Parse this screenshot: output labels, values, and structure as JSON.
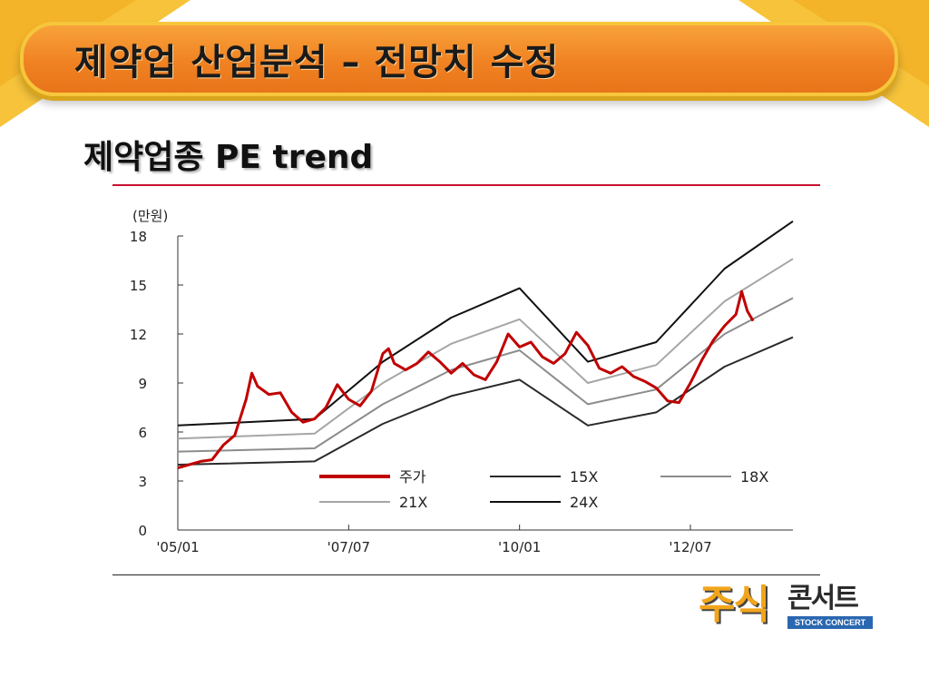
{
  "slide": {
    "title": "제약업 산업분석 – 전망치 수정",
    "subtitle": "제약업종 PE trend"
  },
  "logo": {
    "main": "주식",
    "side": "콘서트",
    "tag": "STOCK CONCERT"
  },
  "chart_data": {
    "type": "line",
    "title": "",
    "ylabel": "(만원)",
    "xlabel": "",
    "ylim": [
      0,
      18
    ],
    "yticks": [
      "0",
      "3",
      "6",
      "9",
      "12",
      "15",
      "18"
    ],
    "xticks": [
      {
        "label": "'05/01",
        "date": "2005-01"
      },
      {
        "label": "'07/07",
        "date": "2007-07"
      },
      {
        "label": "'10/01",
        "date": "2010-01"
      },
      {
        "label": "'12/07",
        "date": "2012-07"
      }
    ],
    "xlim": [
      "2005-01",
      "2014-01"
    ],
    "grid": false,
    "legend_position": "bottom-inside",
    "series": [
      {
        "name": "주가",
        "color": "#c00000",
        "points": [
          [
            "2005-01",
            3.8
          ],
          [
            "2005-03",
            4.0
          ],
          [
            "2005-05",
            4.2
          ],
          [
            "2005-07",
            4.3
          ],
          [
            "2005-09",
            5.2
          ],
          [
            "2005-11",
            5.8
          ],
          [
            "2006-01",
            8.0
          ],
          [
            "2006-02",
            9.6
          ],
          [
            "2006-03",
            8.8
          ],
          [
            "2006-05",
            8.3
          ],
          [
            "2006-07",
            8.4
          ],
          [
            "2006-09",
            7.2
          ],
          [
            "2006-11",
            6.6
          ],
          [
            "2007-01",
            6.8
          ],
          [
            "2007-03",
            7.5
          ],
          [
            "2007-05",
            8.9
          ],
          [
            "2007-07",
            8.0
          ],
          [
            "2007-09",
            7.6
          ],
          [
            "2007-11",
            8.5
          ],
          [
            "2008-01",
            10.8
          ],
          [
            "2008-02",
            11.1
          ],
          [
            "2008-03",
            10.2
          ],
          [
            "2008-05",
            9.8
          ],
          [
            "2008-07",
            10.2
          ],
          [
            "2008-09",
            10.9
          ],
          [
            "2008-11",
            10.3
          ],
          [
            "2009-01",
            9.6
          ],
          [
            "2009-03",
            10.2
          ],
          [
            "2009-05",
            9.5
          ],
          [
            "2009-07",
            9.2
          ],
          [
            "2009-09",
            10.3
          ],
          [
            "2009-11",
            12.0
          ],
          [
            "2010-01",
            11.2
          ],
          [
            "2010-03",
            11.5
          ],
          [
            "2010-05",
            10.6
          ],
          [
            "2010-07",
            10.2
          ],
          [
            "2010-09",
            10.8
          ],
          [
            "2010-11",
            12.1
          ],
          [
            "2011-01",
            11.3
          ],
          [
            "2011-03",
            9.9
          ],
          [
            "2011-05",
            9.6
          ],
          [
            "2011-07",
            10.0
          ],
          [
            "2011-09",
            9.4
          ],
          [
            "2011-11",
            9.1
          ],
          [
            "2012-01",
            8.7
          ],
          [
            "2012-03",
            7.9
          ],
          [
            "2012-05",
            7.8
          ],
          [
            "2012-07",
            9.0
          ],
          [
            "2012-09",
            10.4
          ],
          [
            "2012-11",
            11.6
          ],
          [
            "2013-01",
            12.5
          ],
          [
            "2013-03",
            13.2
          ],
          [
            "2013-04",
            14.6
          ],
          [
            "2013-05",
            13.4
          ],
          [
            "2013-06",
            12.8
          ]
        ]
      },
      {
        "name": "15X",
        "color": "#2a2a2a",
        "points": [
          [
            "2005-01",
            4.0
          ],
          [
            "2007-01",
            4.2
          ],
          [
            "2008-01",
            6.5
          ],
          [
            "2009-01",
            8.2
          ],
          [
            "2010-01",
            9.2
          ],
          [
            "2011-01",
            6.4
          ],
          [
            "2012-01",
            7.2
          ],
          [
            "2013-01",
            10.0
          ],
          [
            "2014-01",
            11.8
          ]
        ]
      },
      {
        "name": "18X",
        "color": "#8c8c8c",
        "points": [
          [
            "2005-01",
            4.8
          ],
          [
            "2007-01",
            5.0
          ],
          [
            "2008-01",
            7.7
          ],
          [
            "2009-01",
            9.8
          ],
          [
            "2010-01",
            11.0
          ],
          [
            "2011-01",
            7.7
          ],
          [
            "2012-01",
            8.6
          ],
          [
            "2013-01",
            12.0
          ],
          [
            "2014-01",
            14.2
          ]
        ]
      },
      {
        "name": "21X",
        "color": "#a6a6a6",
        "points": [
          [
            "2005-01",
            5.6
          ],
          [
            "2007-01",
            5.9
          ],
          [
            "2008-01",
            9.0
          ],
          [
            "2009-01",
            11.4
          ],
          [
            "2010-01",
            12.9
          ],
          [
            "2011-01",
            9.0
          ],
          [
            "2012-01",
            10.1
          ],
          [
            "2013-01",
            14.0
          ],
          [
            "2014-01",
            16.6
          ]
        ]
      },
      {
        "name": "24X",
        "color": "#111111",
        "points": [
          [
            "2005-01",
            6.4
          ],
          [
            "2007-01",
            6.8
          ],
          [
            "2008-01",
            10.3
          ],
          [
            "2009-01",
            13.0
          ],
          [
            "2010-01",
            14.8
          ],
          [
            "2011-01",
            10.3
          ],
          [
            "2012-01",
            11.5
          ],
          [
            "2013-01",
            16.0
          ],
          [
            "2014-01",
            18.9
          ]
        ]
      }
    ],
    "legend_rows": [
      [
        "주가",
        "15X",
        "18X"
      ],
      [
        "21X",
        "24X"
      ]
    ]
  }
}
